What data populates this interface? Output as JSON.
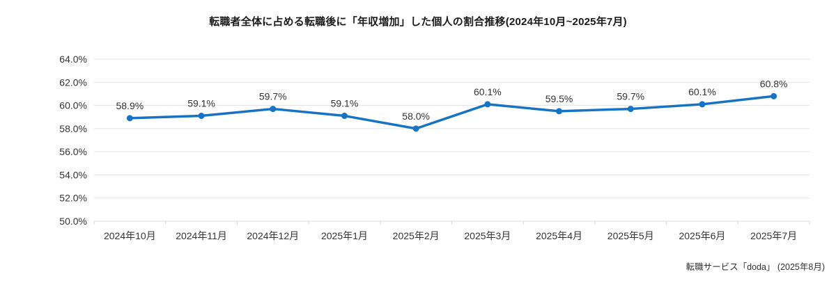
{
  "title": "転職者全体に占める転職後に「年収増加」した個人の割合推移(2024年10月~2025年7月)",
  "source": "転職サービス「doda」 (2025年8月)",
  "colors": {
    "line": "#1774c5",
    "marker": "#1774c5",
    "grid": "#e3e3e3",
    "axis": "#d9d9d9",
    "tick_text": "#333333",
    "value_label": "#333333",
    "title_text": "#1a1a1a"
  },
  "chart_data": {
    "type": "line",
    "title": "転職者全体に占める転職後に「年収増加」した個人の割合推移(2024年10月~2025年7月)",
    "categories": [
      "2024年10月",
      "2024年11月",
      "2024年12月",
      "2025年1月",
      "2025年2月",
      "2025年3月",
      "2025年4月",
      "2025年5月",
      "2025年6月",
      "2025年7月"
    ],
    "values": [
      58.9,
      59.1,
      59.7,
      59.1,
      58.0,
      60.1,
      59.5,
      59.7,
      60.1,
      60.8
    ],
    "value_labels": [
      "58.9%",
      "59.1%",
      "59.7%",
      "59.1%",
      "58.0%",
      "60.1%",
      "59.5%",
      "59.7%",
      "60.1%",
      "60.8%"
    ],
    "ylim": [
      50,
      64
    ],
    "yticks": [
      50,
      52,
      54,
      56,
      58,
      60,
      62,
      64
    ],
    "ytick_labels": [
      "50.0%",
      "52.0%",
      "54.0%",
      "56.0%",
      "58.0%",
      "60.0%",
      "62.0%",
      "64.0%"
    ],
    "xlabel": "",
    "ylabel": "",
    "grid": true,
    "legend": false,
    "annotation_source": "転職サービス「doda」 (2025年8月)"
  }
}
